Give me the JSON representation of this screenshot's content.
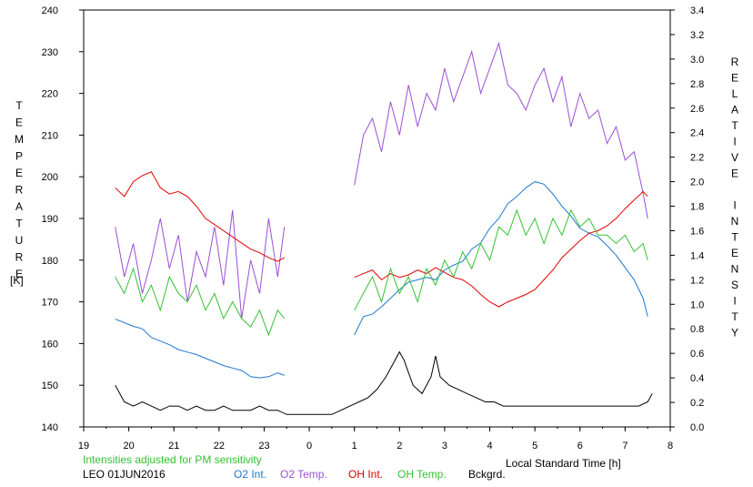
{
  "chart_data": {
    "type": "line",
    "station": "LEO 01JUN2016",
    "note": "Intensities adjusted for PM sensitivity",
    "xlabel": "Local Standard Time [h]",
    "ylabel_left": "TEMPERATURE",
    "ylabel_left_unit": "[K]",
    "ylabel_right": "RELATIVE INTENSITY",
    "x_ticks": [
      "19",
      "20",
      "21",
      "22",
      "23",
      "0",
      "1",
      "2",
      "3",
      "4",
      "5",
      "6",
      "7",
      "8"
    ],
    "x_range": [
      19,
      32
    ],
    "y_left_range": [
      140,
      240
    ],
    "y_left_ticks": [
      "140",
      "150",
      "160",
      "170",
      "180",
      "190",
      "200",
      "210",
      "220",
      "230",
      "240"
    ],
    "y_right_range": [
      0,
      3.4
    ],
    "y_right_ticks": [
      "0.0",
      "0.2",
      "0.4",
      "0.6",
      "0.8",
      "1.0",
      "1.2",
      "1.4",
      "1.6",
      "1.8",
      "2.0",
      "2.2",
      "2.4",
      "2.6",
      "2.8",
      "3.0",
      "3.2",
      "3.4"
    ],
    "colors": {
      "o2_int": "#1f77d0",
      "o2_temp": "#9b4fd6",
      "oh_int": "#e00000",
      "oh_temp": "#33c233",
      "bckgrd": "#000000",
      "note": "#33c233"
    },
    "series": [
      {
        "name": "O2 Int.",
        "axis": "right",
        "segments": [
          {
            "x": [
              19.7,
              19.9,
              20.1,
              20.3,
              20.5,
              20.7,
              20.9,
              21.1,
              21.3,
              21.5,
              21.7,
              21.9,
              22.1,
              22.3,
              22.5,
              22.7,
              22.9,
              23.1,
              23.3,
              23.45
            ],
            "y": [
              0.88,
              0.85,
              0.82,
              0.8,
              0.73,
              0.7,
              0.67,
              0.63,
              0.61,
              0.59,
              0.56,
              0.53,
              0.5,
              0.48,
              0.46,
              0.41,
              0.4,
              0.41,
              0.44,
              0.42
            ]
          },
          {
            "x": [
              25.0,
              25.2,
              25.4,
              25.6,
              25.8,
              26.0,
              26.2,
              26.4,
              26.6,
              26.8,
              27.0,
              27.2,
              27.4,
              27.6,
              27.8,
              28.0,
              28.2,
              28.4,
              28.6,
              28.8,
              29.0,
              29.2,
              29.4,
              29.6,
              29.8,
              30.0,
              30.2,
              30.4,
              30.6,
              30.8,
              31.0,
              31.2,
              31.4,
              31.5
            ],
            "y": [
              0.75,
              0.9,
              0.92,
              0.98,
              1.05,
              1.12,
              1.18,
              1.2,
              1.22,
              1.2,
              1.28,
              1.32,
              1.35,
              1.45,
              1.5,
              1.62,
              1.7,
              1.82,
              1.88,
              1.95,
              2.0,
              1.98,
              1.9,
              1.8,
              1.72,
              1.62,
              1.58,
              1.55,
              1.48,
              1.4,
              1.3,
              1.2,
              1.05,
              0.9
            ]
          }
        ]
      },
      {
        "name": "O2 Temp.",
        "axis": "left",
        "segments": [
          {
            "x": [
              19.7,
              19.9,
              20.1,
              20.3,
              20.5,
              20.7,
              20.9,
              21.1,
              21.3,
              21.5,
              21.7,
              21.9,
              22.1,
              22.3,
              22.5,
              22.7,
              22.9,
              23.1,
              23.3,
              23.45
            ],
            "y": [
              188,
              176,
              184,
              172,
              180,
              190,
              178,
              186,
              170,
              182,
              176,
              188,
              174,
              192,
              166,
              180,
              172,
              190,
              176,
              188
            ]
          },
          {
            "x": [
              25.0,
              25.2,
              25.4,
              25.6,
              25.8,
              26.0,
              26.2,
              26.4,
              26.6,
              26.8,
              27.0,
              27.2,
              27.4,
              27.6,
              27.8,
              28.0,
              28.2,
              28.4,
              28.6,
              28.8,
              29.0,
              29.2,
              29.4,
              29.6,
              29.8,
              30.0,
              30.2,
              30.4,
              30.6,
              30.8,
              31.0,
              31.2,
              31.4,
              31.5
            ],
            "y": [
              198,
              210,
              214,
              206,
              218,
              210,
              222,
              212,
              220,
              216,
              226,
              218,
              224,
              230,
              220,
              226,
              232,
              222,
              220,
              216,
              222,
              226,
              218,
              224,
              212,
              220,
              214,
              216,
              208,
              212,
              204,
              206,
              196,
              190
            ]
          }
        ]
      },
      {
        "name": "OH Int.",
        "axis": "right",
        "segments": [
          {
            "x": [
              19.7,
              19.9,
              20.1,
              20.3,
              20.5,
              20.7,
              20.9,
              21.1,
              21.3,
              21.5,
              21.7,
              21.9,
              22.1,
              22.3,
              22.5,
              22.7,
              22.9,
              23.1,
              23.3,
              23.45
            ],
            "y": [
              1.95,
              1.88,
              2.0,
              2.05,
              2.08,
              1.95,
              1.9,
              1.92,
              1.88,
              1.8,
              1.7,
              1.65,
              1.6,
              1.55,
              1.5,
              1.45,
              1.42,
              1.38,
              1.35,
              1.38
            ]
          },
          {
            "x": [
              25.0,
              25.2,
              25.4,
              25.6,
              25.8,
              26.0,
              26.2,
              26.4,
              26.6,
              26.8,
              27.0,
              27.2,
              27.4,
              27.6,
              27.8,
              28.0,
              28.2,
              28.4,
              28.6,
              28.8,
              29.0,
              29.2,
              29.4,
              29.6,
              29.8,
              30.0,
              30.2,
              30.4,
              30.6,
              30.8,
              31.0,
              31.2,
              31.4,
              31.5
            ],
            "y": [
              1.22,
              1.25,
              1.28,
              1.2,
              1.25,
              1.22,
              1.24,
              1.28,
              1.25,
              1.3,
              1.26,
              1.22,
              1.2,
              1.15,
              1.08,
              1.02,
              0.98,
              1.02,
              1.05,
              1.08,
              1.12,
              1.2,
              1.28,
              1.38,
              1.45,
              1.52,
              1.58,
              1.6,
              1.64,
              1.7,
              1.78,
              1.85,
              1.92,
              1.88
            ]
          }
        ]
      },
      {
        "name": "OH Temp.",
        "axis": "left",
        "segments": [
          {
            "x": [
              19.7,
              19.9,
              20.1,
              20.3,
              20.5,
              20.7,
              20.9,
              21.1,
              21.3,
              21.5,
              21.7,
              21.9,
              22.1,
              22.3,
              22.5,
              22.7,
              22.9,
              23.1,
              23.3,
              23.45
            ],
            "y": [
              176,
              172,
              178,
              170,
              174,
              168,
              176,
              172,
              170,
              174,
              168,
              172,
              166,
              170,
              166,
              164,
              168,
              162,
              168,
              166
            ]
          },
          {
            "x": [
              25.0,
              25.2,
              25.4,
              25.6,
              25.8,
              26.0,
              26.2,
              26.4,
              26.6,
              26.8,
              27.0,
              27.2,
              27.4,
              27.6,
              27.8,
              28.0,
              28.2,
              28.4,
              28.6,
              28.8,
              29.0,
              29.2,
              29.4,
              29.6,
              29.8,
              30.0,
              30.2,
              30.4,
              30.6,
              30.8,
              31.0,
              31.2,
              31.4,
              31.5
            ],
            "y": [
              168,
              172,
              176,
              170,
              178,
              172,
              176,
              170,
              178,
              174,
              180,
              176,
              182,
              178,
              184,
              180,
              188,
              186,
              192,
              186,
              190,
              184,
              190,
              186,
              192,
              188,
              190,
              186,
              186,
              184,
              186,
              182,
              184,
              180
            ]
          }
        ]
      },
      {
        "name": "Bckgrd.",
        "axis": "left",
        "segments": [
          {
            "x": [
              19.7,
              19.9,
              20.1,
              20.3,
              20.5,
              20.7,
              20.9,
              21.1,
              21.3,
              21.5,
              21.7,
              21.9,
              22.1,
              22.3,
              22.5,
              22.7,
              22.9,
              23.1,
              23.3,
              23.5,
              23.7,
              23.9,
              24.1,
              24.3,
              24.5,
              24.7,
              24.9,
              25.1,
              25.3,
              25.5,
              25.7,
              25.9,
              26.0,
              26.1,
              26.3,
              26.5,
              26.7,
              26.8,
              26.9,
              27.1,
              27.3,
              27.5,
              27.7,
              27.9,
              28.1,
              28.3,
              28.5,
              28.7,
              28.9,
              29.1,
              29.3,
              29.5,
              29.7,
              29.9,
              30.1,
              30.3,
              30.5,
              30.7,
              30.9,
              31.1,
              31.3,
              31.5,
              31.6
            ],
            "y": [
              150,
              146,
              145,
              146,
              145,
              144,
              145,
              145,
              144,
              145,
              144,
              144,
              145,
              144,
              144,
              144,
              145,
              144,
              144,
              143,
              143,
              143,
              143,
              143,
              143,
              144,
              145,
              146,
              147,
              149,
              152,
              156,
              158,
              156,
              150,
              148,
              152,
              157,
              152,
              150,
              149,
              148,
              147,
              146,
              146,
              145,
              145,
              145,
              145,
              145,
              145,
              145,
              145,
              145,
              145,
              145,
              145,
              145,
              145,
              145,
              145,
              146,
              148
            ]
          }
        ]
      }
    ]
  },
  "legend": {
    "o2_int": "O2 Int.",
    "o2_temp": "O2 Temp.",
    "oh_int": "OH Int.",
    "oh_temp": "OH Temp.",
    "bckgrd": "Bckgrd."
  }
}
